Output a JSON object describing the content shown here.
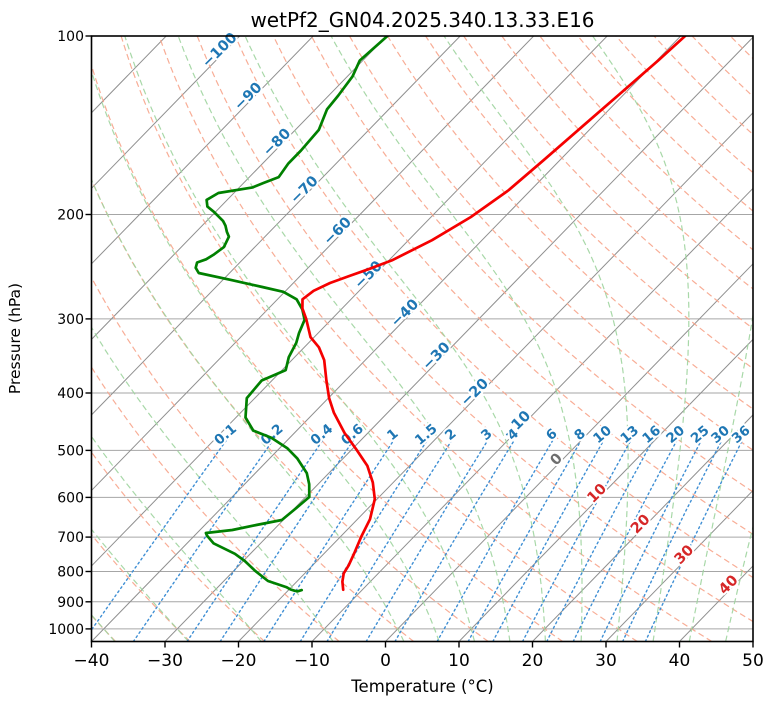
{
  "chart_data": {
    "type": "skewt",
    "title": "wetPf2_GN04.2025.340.13.33.E16",
    "xlabel": "Temperature (°C)",
    "ylabel": "Pressure (hPa)",
    "xlim": [
      -40,
      50
    ],
    "pressure_lim": [
      1050,
      100
    ],
    "x_ticks": [
      -40,
      -30,
      -20,
      -10,
      0,
      10,
      20,
      30,
      40,
      50
    ],
    "pressure_ticks": [
      100,
      200,
      300,
      400,
      500,
      600,
      700,
      800,
      900,
      1000
    ],
    "isotherms": {
      "min": -120,
      "max": 50,
      "step": 10
    },
    "isotherm_labels": [
      {
        "t": -100,
        "p": 107
      },
      {
        "t": -90,
        "p": 128
      },
      {
        "t": -80,
        "p": 153
      },
      {
        "t": -70,
        "p": 184
      },
      {
        "t": -60,
        "p": 216
      },
      {
        "t": -50,
        "p": 256
      },
      {
        "t": -40,
        "p": 297
      },
      {
        "t": -30,
        "p": 351
      },
      {
        "t": -20,
        "p": 404
      },
      {
        "t": -10,
        "p": 458
      },
      {
        "t": 0,
        "p": 524
      },
      {
        "t": 10,
        "p": 598
      },
      {
        "t": 20,
        "p": 674
      },
      {
        "t": 30,
        "p": 759
      },
      {
        "t": 40,
        "p": 853
      }
    ],
    "dry_adiabats": {
      "theta_min": -40,
      "theta_max": 200,
      "step": 10
    },
    "moist_adiabats": {
      "t0": [
        -40,
        -30,
        -20,
        -10,
        0,
        5,
        10,
        15,
        20,
        25,
        30,
        35,
        40,
        45
      ]
    },
    "mixing_ratio": {
      "values": [
        0.1,
        0.2,
        0.4,
        0.6,
        1,
        1.5,
        2,
        3,
        4,
        6,
        8,
        10,
        13,
        16,
        20,
        25,
        30,
        36
      ],
      "p_bottom": 1050,
      "p_top": 482,
      "label_p": 476
    },
    "temperature_profile": [
      [
        100,
        -39.4
      ],
      [
        110,
        -39.8
      ],
      [
        125,
        -40.6
      ],
      [
        142,
        -41.4
      ],
      [
        162,
        -42.2
      ],
      [
        182,
        -43.0
      ],
      [
        202,
        -44.6
      ],
      [
        221,
        -46.8
      ],
      [
        239,
        -49.6
      ],
      [
        247,
        -51.5
      ],
      [
        254,
        -53.3
      ],
      [
        261,
        -55.0
      ],
      [
        269,
        -56.2
      ],
      [
        278,
        -56.6
      ],
      [
        288,
        -55.4
      ],
      [
        300,
        -53.5
      ],
      [
        322,
        -50.5
      ],
      [
        335,
        -48.0
      ],
      [
        352,
        -45.6
      ],
      [
        381,
        -42.6
      ],
      [
        408,
        -39.9
      ],
      [
        432,
        -37.3
      ],
      [
        467,
        -33.2
      ],
      [
        498,
        -29.4
      ],
      [
        531,
        -25.7
      ],
      [
        566,
        -22.8
      ],
      [
        604,
        -20.3
      ],
      [
        653,
        -18.3
      ],
      [
        698,
        -17.2
      ],
      [
        743,
        -16.0
      ],
      [
        781,
        -15.1
      ],
      [
        806,
        -14.7
      ],
      [
        832,
        -13.8
      ],
      [
        859,
        -12.6
      ]
    ],
    "dewpoint_profile": [
      [
        100,
        -79.9
      ],
      [
        110,
        -80.4
      ],
      [
        117,
        -79.3
      ],
      [
        126,
        -78.7
      ],
      [
        133,
        -78.4
      ],
      [
        144,
        -76.8
      ],
      [
        156,
        -76.5
      ],
      [
        164,
        -76.5
      ],
      [
        173,
        -76.0
      ],
      [
        177,
        -77.3
      ],
      [
        180,
        -78.2
      ],
      [
        184,
        -82.1
      ],
      [
        189,
        -82.8
      ],
      [
        194,
        -81.8
      ],
      [
        198,
        -80.2
      ],
      [
        205,
        -77.8
      ],
      [
        209,
        -76.8
      ],
      [
        214,
        -75.8
      ],
      [
        218,
        -74.9
      ],
      [
        227,
        -74.2
      ],
      [
        234,
        -74.6
      ],
      [
        238,
        -75.0
      ],
      [
        241,
        -75.8
      ],
      [
        246,
        -75.3
      ],
      [
        251,
        -74.2
      ],
      [
        258,
        -68.8
      ],
      [
        265,
        -63.7
      ],
      [
        270,
        -60.2
      ],
      [
        278,
        -57.4
      ],
      [
        289,
        -55.3
      ],
      [
        301,
        -53.6
      ],
      [
        317,
        -52.6
      ],
      [
        329,
        -51.7
      ],
      [
        348,
        -50.8
      ],
      [
        366,
        -49.5
      ],
      [
        381,
        -51.4
      ],
      [
        408,
        -51.1
      ],
      [
        440,
        -48.7
      ],
      [
        463,
        -45.9
      ],
      [
        476,
        -42.5
      ],
      [
        496,
        -38.9
      ],
      [
        516,
        -36.2
      ],
      [
        546,
        -33.0
      ],
      [
        570,
        -31.2
      ],
      [
        599,
        -29.5
      ],
      [
        625,
        -29.8
      ],
      [
        655,
        -30.2
      ],
      [
        668,
        -33.0
      ],
      [
        681,
        -35.6
      ],
      [
        689,
        -38.8
      ],
      [
        696,
        -38.3
      ],
      [
        717,
        -36.4
      ],
      [
        747,
        -32.1
      ],
      [
        768,
        -29.8
      ],
      [
        798,
        -27.1
      ],
      [
        830,
        -24.0
      ],
      [
        850,
        -20.7
      ],
      [
        858,
        -19.8
      ],
      [
        862,
        -19.1
      ],
      [
        864,
        -18.6
      ],
      [
        860,
        -18.2
      ]
    ],
    "colors": {
      "temperature": "#f50000",
      "dewpoint": "#008000",
      "dry_adiabat": "#f7a48b",
      "moist_adiabat": "#9fd49f",
      "mixing_ratio": "#3f8fd4",
      "isotherm": "#8f8f8f",
      "grid": "#a6a6a6",
      "frame": "#000000",
      "label_negative": "#1f77b4",
      "label_zero": "#6e6e6e",
      "label_positive": "#d62728"
    }
  }
}
